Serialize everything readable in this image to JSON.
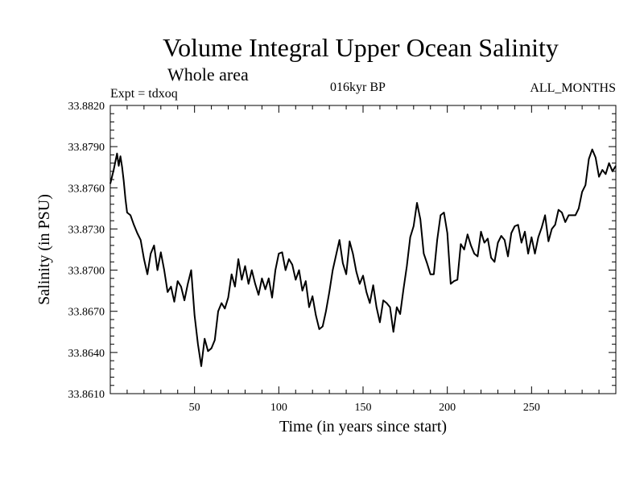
{
  "chart_data": {
    "type": "line",
    "title": "Volume Integral Upper Ocean Salinity",
    "subtitle": "Whole area",
    "expt_label": "Expt = tdxoq",
    "period_label": "016kyr BP",
    "months_label": "ALL_MONTHS",
    "xlabel": "Time (in years since start)",
    "ylabel": "Salinity (in PSU)",
    "xlim": [
      0,
      300
    ],
    "ylim": [
      33.861,
      33.882
    ],
    "xticks": [
      50,
      100,
      150,
      200,
      250
    ],
    "yticks": [
      "33.8610",
      "33.8640",
      "33.8670",
      "33.8700",
      "33.8730",
      "33.8760",
      "33.8790",
      "33.8820"
    ],
    "grid": false,
    "line_color": "#000000",
    "series": [
      {
        "x": [
          0,
          2,
          4,
          5,
          6,
          7,
          8,
          9,
          10,
          12,
          14,
          16,
          18,
          20,
          22,
          24,
          26,
          28,
          30,
          32,
          34,
          36,
          38,
          40,
          42,
          44,
          46,
          48,
          50,
          52,
          54,
          56,
          58,
          60,
          62,
          64,
          66,
          68,
          70,
          72,
          74,
          76,
          78,
          80,
          82,
          84,
          86,
          88,
          90,
          92,
          94,
          96,
          98,
          100,
          102,
          104,
          106,
          108,
          110,
          112,
          114,
          116,
          118,
          120,
          122,
          124,
          126,
          128,
          130,
          132,
          134,
          136,
          138,
          140,
          142,
          144,
          146,
          148,
          150,
          152,
          154,
          156,
          158,
          160,
          162,
          164,
          166,
          168,
          170,
          172,
          174,
          176,
          178,
          180,
          182,
          184,
          186,
          188,
          190,
          192,
          194,
          196,
          198,
          200,
          202,
          204,
          206,
          208,
          210,
          212,
          214,
          216,
          218,
          220,
          222,
          224,
          226,
          228,
          230,
          232,
          234,
          236,
          238,
          240,
          242,
          244,
          246,
          248,
          250,
          252,
          254,
          256,
          258,
          260,
          262,
          264,
          266,
          268,
          270,
          272,
          274,
          276,
          278,
          280,
          282,
          284,
          286,
          288,
          290,
          292,
          294,
          296,
          298,
          300
        ],
        "y": [
          33.8763,
          33.8773,
          33.8785,
          33.8776,
          33.8783,
          33.8775,
          33.8765,
          33.8752,
          33.8742,
          33.874,
          33.8733,
          33.8727,
          33.8722,
          33.8708,
          33.8697,
          33.8712,
          33.8718,
          33.87,
          33.8713,
          33.87,
          33.8684,
          33.8688,
          33.8677,
          33.8692,
          33.8688,
          33.8678,
          33.869,
          33.87,
          33.8667,
          33.8646,
          33.863,
          33.865,
          33.8641,
          33.8643,
          33.8649,
          33.867,
          33.8676,
          33.8672,
          33.868,
          33.8697,
          33.8688,
          33.8708,
          33.8693,
          33.8703,
          33.869,
          33.87,
          33.869,
          33.8682,
          33.8694,
          33.8686,
          33.8694,
          33.868,
          33.87,
          33.8712,
          33.8713,
          33.87,
          33.8708,
          33.8704,
          33.8693,
          33.87,
          33.8685,
          33.8692,
          33.8673,
          33.8681,
          33.8667,
          33.8657,
          33.8659,
          33.867,
          33.8684,
          33.87,
          33.8711,
          33.8722,
          33.8705,
          33.8697,
          33.8721,
          33.8712,
          33.8699,
          33.869,
          33.8696,
          33.8684,
          33.8676,
          33.8689,
          33.8673,
          33.8662,
          33.8678,
          33.8676,
          33.8673,
          33.8655,
          33.8673,
          33.8668,
          33.8686,
          33.8703,
          33.8724,
          33.8732,
          33.8749,
          33.8737,
          33.8712,
          33.8705,
          33.8697,
          33.8697,
          33.8722,
          33.874,
          33.8742,
          33.8727,
          33.869,
          33.8692,
          33.8693,
          33.8719,
          33.8715,
          33.8726,
          33.8718,
          33.8712,
          33.871,
          33.8728,
          33.872,
          33.8723,
          33.8709,
          33.8706,
          33.872,
          33.8725,
          33.8722,
          33.871,
          33.8727,
          33.8732,
          33.8733,
          33.872,
          33.8728,
          33.8712,
          33.8724,
          33.8712,
          33.8724,
          33.8731,
          33.874,
          33.8721,
          33.873,
          33.8733,
          33.8744,
          33.8742,
          33.8735,
          33.874,
          33.874,
          33.874,
          33.8745,
          33.8757,
          33.8762,
          33.8781,
          33.8788,
          33.8782,
          33.8768,
          33.8773,
          33.877,
          33.8778,
          33.8772,
          33.8776
        ]
      }
    ]
  }
}
